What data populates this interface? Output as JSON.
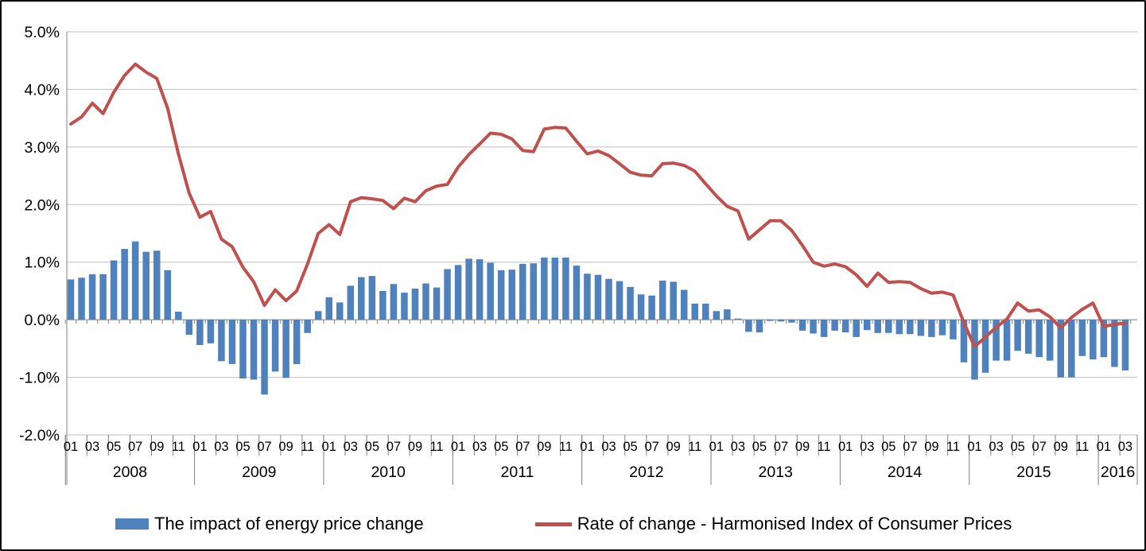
{
  "chart_data": {
    "type": "bar-line-combo",
    "title": "",
    "start": "2008-01",
    "end": "2016-03",
    "x_years": [
      2008,
      2009,
      2010,
      2011,
      2012,
      2013,
      2014,
      2015,
      2016
    ],
    "x_month_tick_labels": [
      "01",
      "03",
      "05",
      "07",
      "09",
      "11"
    ],
    "months_in_last_year": 3,
    "ylim": [
      -2.0,
      5.0
    ],
    "ytick_step": 1.0,
    "y_tick_labels": [
      "5.0%",
      "4.0%",
      "3.0%",
      "2.0%",
      "1.0%",
      "0.0%",
      "-1.0%",
      "-2.0%"
    ],
    "grid": true,
    "legend_position": "bottom",
    "colors": {
      "bar": "#4F81BD",
      "line": "#C0504D",
      "gridline": "#BFBFBF",
      "axis": "#808080",
      "text": "#000000"
    },
    "series": [
      {
        "name": "The impact of energy price change",
        "type": "bar",
        "color": "#4F81BD",
        "values": [
          0.7,
          0.73,
          0.79,
          0.79,
          1.03,
          1.23,
          1.36,
          1.18,
          1.2,
          0.86,
          0.14,
          -0.26,
          -0.44,
          -0.41,
          -0.72,
          -0.77,
          -1.02,
          -1.04,
          -1.3,
          -0.9,
          -1.01,
          -0.77,
          -0.23,
          0.15,
          0.39,
          0.3,
          0.59,
          0.74,
          0.76,
          0.5,
          0.62,
          0.47,
          0.54,
          0.63,
          0.56,
          0.88,
          0.95,
          1.06,
          1.05,
          0.99,
          0.86,
          0.87,
          0.97,
          0.98,
          1.08,
          1.08,
          1.08,
          0.94,
          0.8,
          0.78,
          0.71,
          0.67,
          0.57,
          0.44,
          0.42,
          0.68,
          0.66,
          0.52,
          0.28,
          0.28,
          0.15,
          0.18,
          0.02,
          -0.21,
          -0.22,
          -0.02,
          -0.03,
          -0.05,
          -0.19,
          -0.24,
          -0.3,
          -0.19,
          -0.22,
          -0.3,
          -0.18,
          -0.23,
          -0.23,
          -0.25,
          -0.25,
          -0.28,
          -0.3,
          -0.27,
          -0.34,
          -0.74,
          -1.04,
          -0.92,
          -0.71,
          -0.71,
          -0.54,
          -0.59,
          -0.65,
          -0.71,
          -1.0,
          -1.0,
          -0.63,
          -0.69,
          -0.65,
          -0.82,
          -0.88
        ]
      },
      {
        "name": "Rate of change - Harmonised Index of Consumer Prices",
        "type": "line",
        "color": "#C0504D",
        "values": [
          3.4,
          3.52,
          3.76,
          3.58,
          3.95,
          4.24,
          4.44,
          4.3,
          4.19,
          3.67,
          2.88,
          2.2,
          1.78,
          1.88,
          1.4,
          1.27,
          0.91,
          0.66,
          0.25,
          0.52,
          0.33,
          0.5,
          0.97,
          1.5,
          1.65,
          1.48,
          2.05,
          2.12,
          2.1,
          2.07,
          1.93,
          2.11,
          2.05,
          2.24,
          2.32,
          2.35,
          2.65,
          2.87,
          3.05,
          3.24,
          3.22,
          3.14,
          2.94,
          2.92,
          3.31,
          3.34,
          3.33,
          3.1,
          2.88,
          2.93,
          2.85,
          2.71,
          2.56,
          2.51,
          2.5,
          2.71,
          2.72,
          2.68,
          2.58,
          2.36,
          2.15,
          1.97,
          1.89,
          1.4,
          1.56,
          1.72,
          1.72,
          1.55,
          1.29,
          1.0,
          0.93,
          0.97,
          0.92,
          0.78,
          0.58,
          0.81,
          0.65,
          0.66,
          0.65,
          0.54,
          0.46,
          0.48,
          0.43,
          -0.05,
          -0.47,
          -0.3,
          -0.13,
          0.01,
          0.29,
          0.15,
          0.17,
          0.05,
          -0.14,
          0.04,
          0.18,
          0.29,
          -0.12,
          -0.08,
          -0.06
        ]
      }
    ]
  }
}
